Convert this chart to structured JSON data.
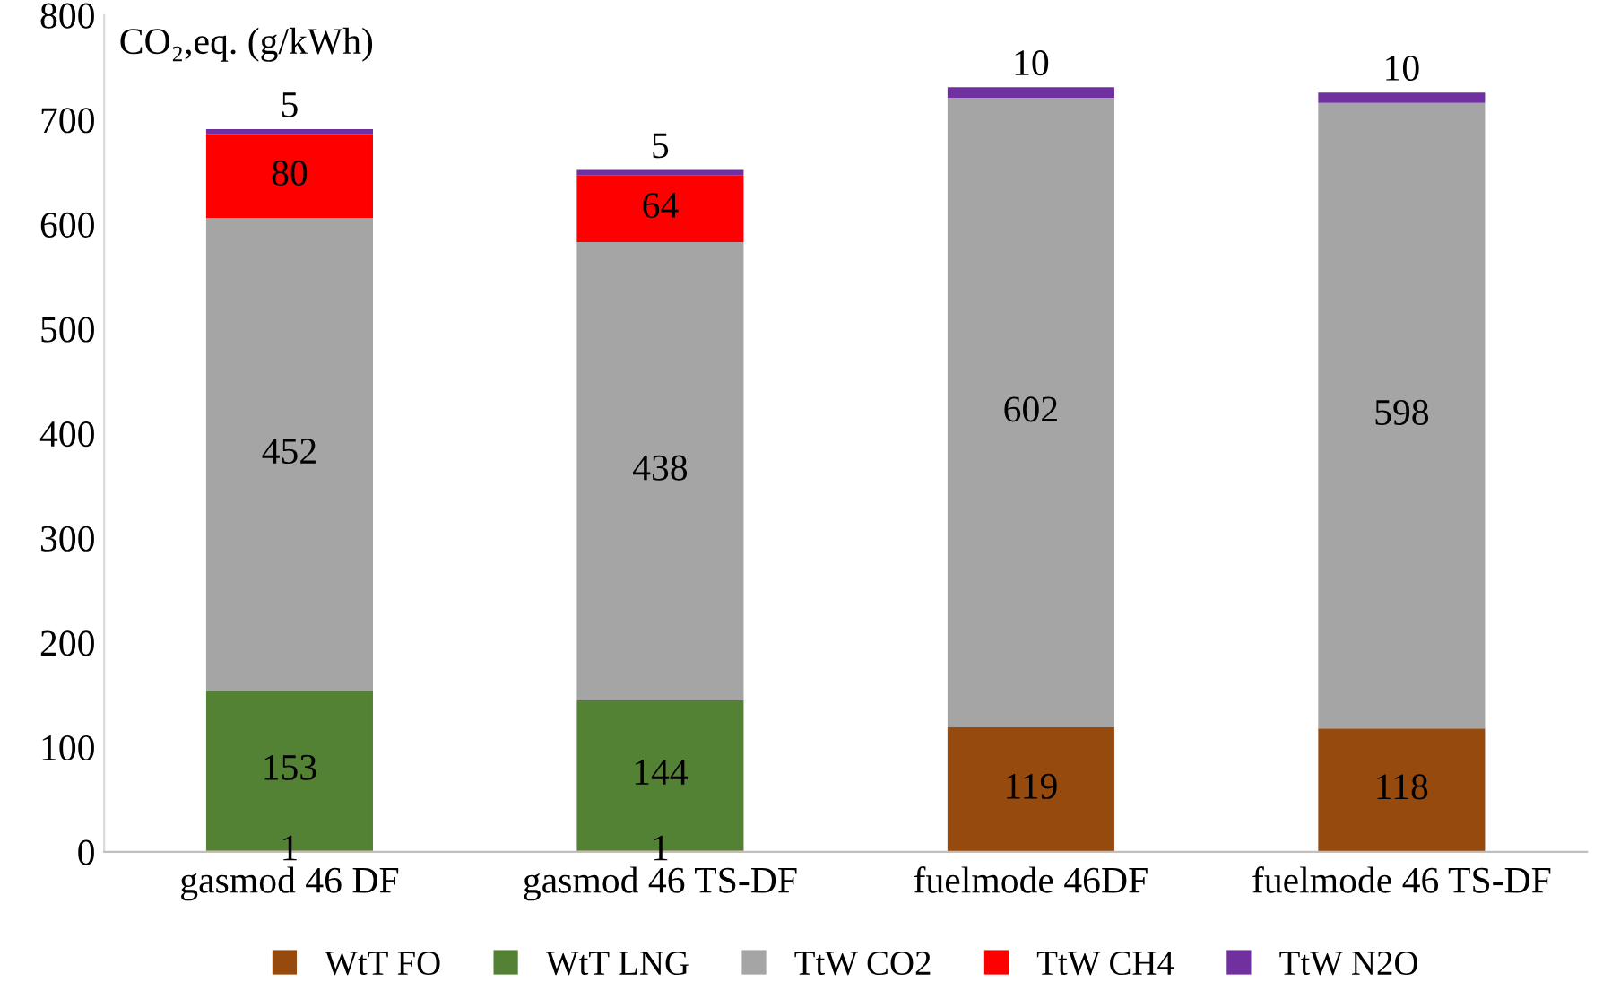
{
  "chart_data": {
    "type": "bar",
    "stacked": true,
    "ylabel": "CO₂,eq. (g/kWh)",
    "categories": [
      "gasmod 46 DF",
      "gasmod 46 TS-DF",
      "fuelmode 46DF",
      "fuelmode 46 TS-DF"
    ],
    "series": [
      {
        "name": "WtT FO",
        "color": "#974a0e",
        "values": [
          1,
          1,
          119,
          118
        ]
      },
      {
        "name": "WtT LNG",
        "color": "#548235",
        "values": [
          153,
          144,
          null,
          null
        ]
      },
      {
        "name": "TtW CO2",
        "color": "#a5a5a5",
        "values": [
          452,
          438,
          602,
          598
        ]
      },
      {
        "name": "TtW CH4",
        "color": "#ff0000",
        "values": [
          80,
          64,
          null,
          null
        ]
      },
      {
        "name": "TtW N2O",
        "color": "#7030a0",
        "values": [
          5,
          5,
          10,
          10
        ]
      }
    ],
    "ylim": [
      0,
      800
    ],
    "yticks": [
      0,
      100,
      200,
      300,
      400,
      500,
      600,
      700,
      800
    ],
    "grid": false,
    "legend": "bottom",
    "data_labels": true
  }
}
